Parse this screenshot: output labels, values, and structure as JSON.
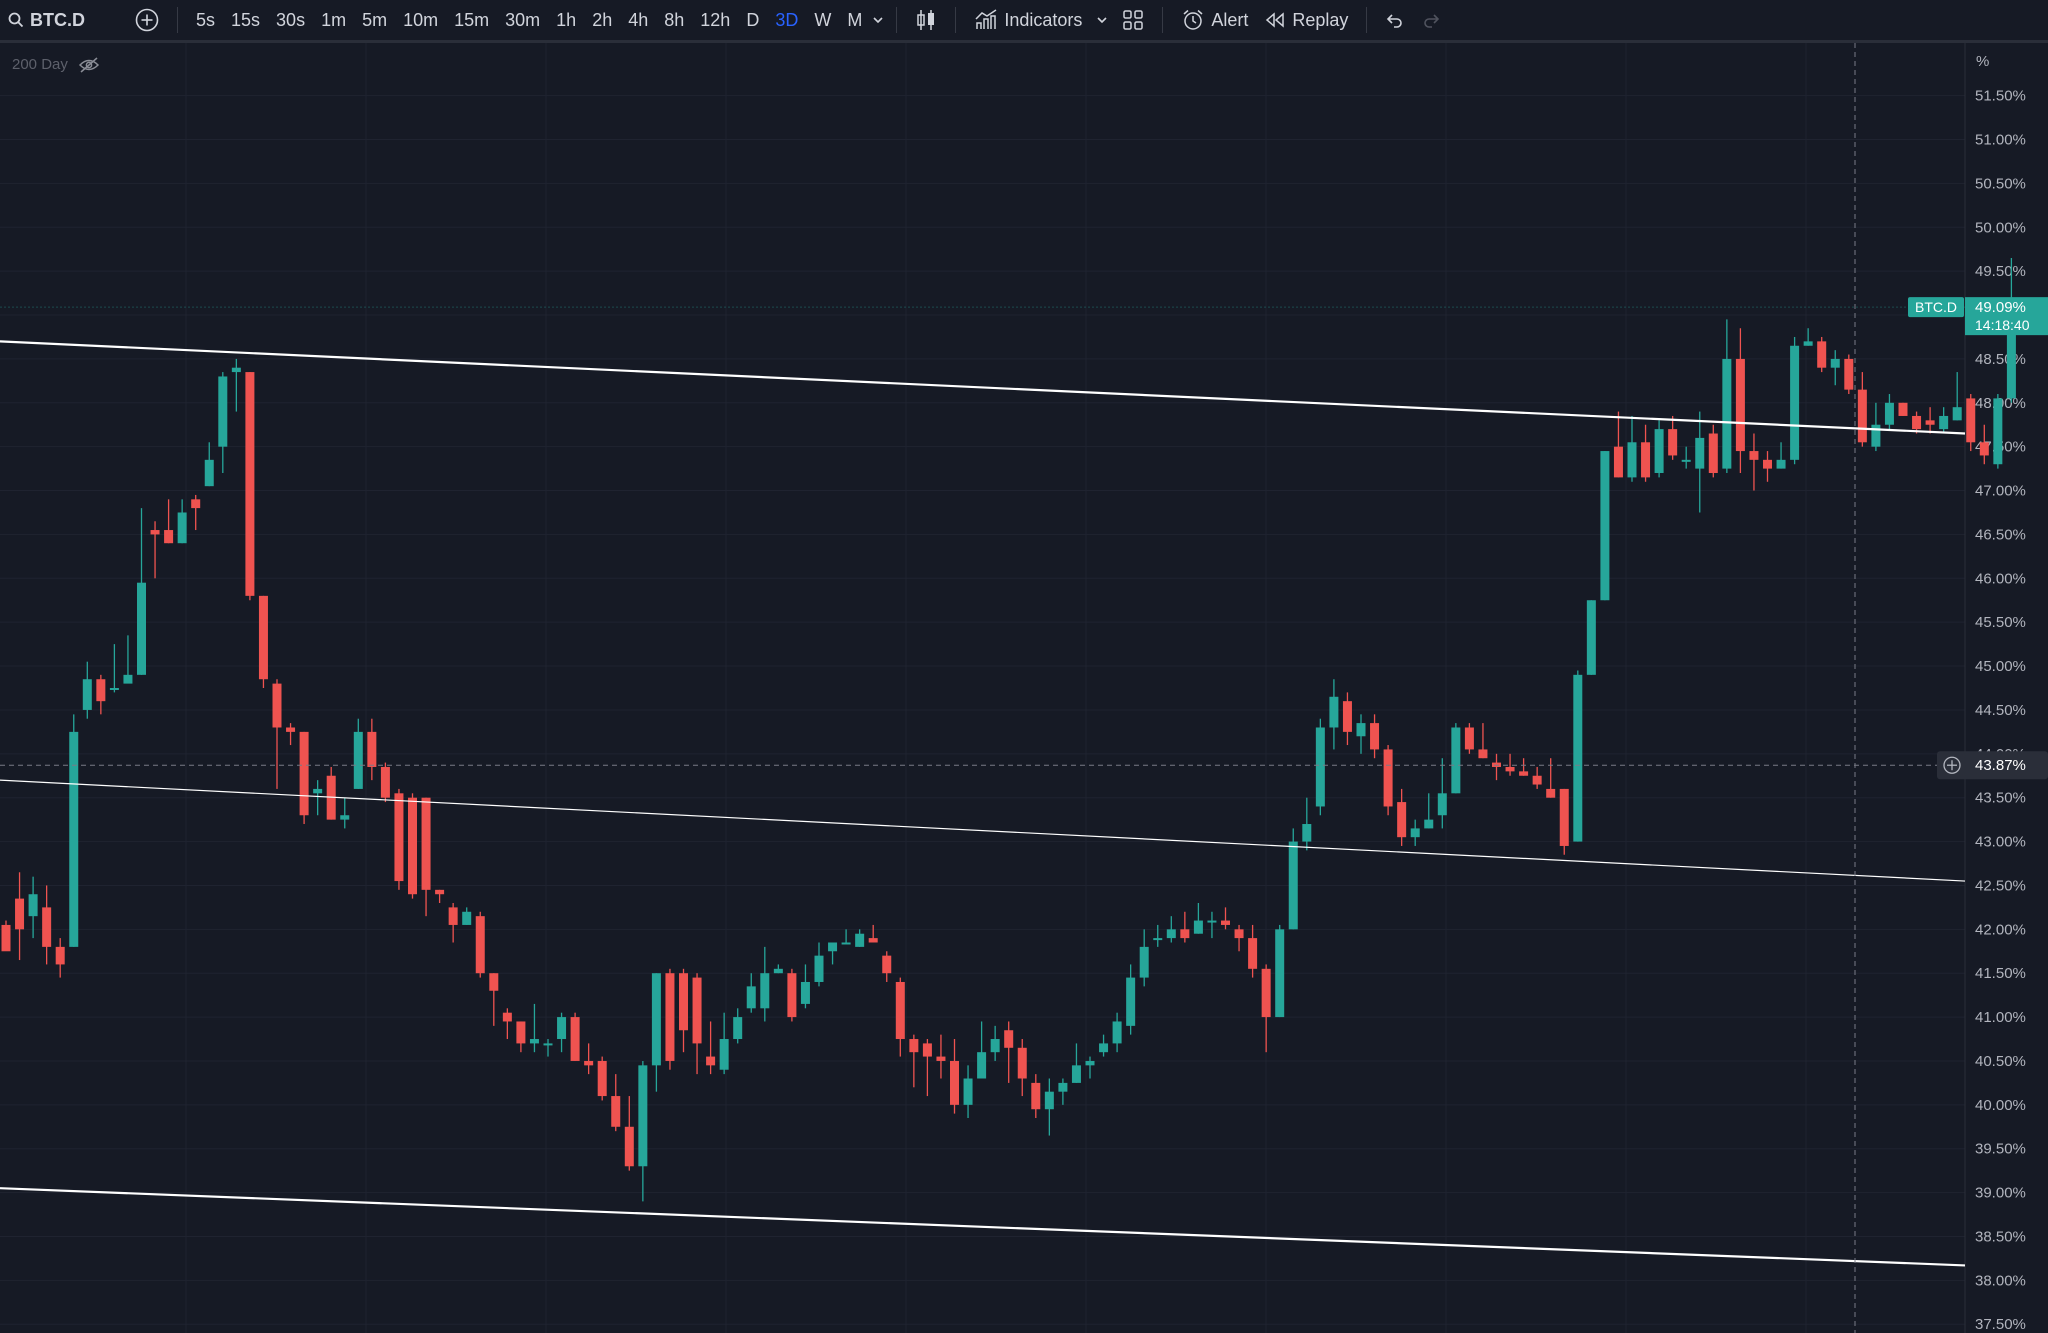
{
  "toolbar": {
    "symbol": "BTC.D",
    "intervals": [
      "5s",
      "15s",
      "30s",
      "1m",
      "5m",
      "10m",
      "15m",
      "30m",
      "1h",
      "2h",
      "4h",
      "8h",
      "12h",
      "D",
      "3D",
      "W",
      "M"
    ],
    "active_interval": "3D",
    "indicators_label": "Indicators",
    "alert_label": "Alert",
    "replay_label": "Replay"
  },
  "legend": {
    "indicator_label": "200 Day"
  },
  "price_axis": {
    "unit": "%"
  },
  "colors": {
    "up": "#26a69a",
    "down": "#ef5350",
    "background": "#161a25",
    "grid": "#1f2330",
    "accent": "#2962ff",
    "tag": "#26a69a"
  },
  "chart_data": {
    "type": "candlestick",
    "symbol": "BTC.D",
    "ylim": [
      37.4,
      52.1
    ],
    "y_ticks": [
      "51.50%",
      "51.00%",
      "50.50%",
      "50.00%",
      "49.50%",
      "49.00%",
      "48.50%",
      "48.00%",
      "47.50%",
      "47.00%",
      "46.50%",
      "46.00%",
      "45.50%",
      "45.00%",
      "44.50%",
      "44.00%",
      "43.50%",
      "43.00%",
      "42.50%",
      "42.00%",
      "41.50%",
      "41.00%",
      "40.50%",
      "40.00%",
      "39.50%",
      "39.00%",
      "38.50%",
      "38.00%",
      "37.50%"
    ],
    "current_price": {
      "symbol_tag": "BTC.D",
      "label": "49.09%",
      "countdown": "14:18:40",
      "value": 49.09
    },
    "crosshair": {
      "label": "43.87%",
      "value": 43.87
    },
    "candles": [
      [
        42.05,
        41.75,
        42.1,
        41.8
      ],
      [
        42.35,
        42.0,
        42.65,
        41.65
      ],
      [
        42.15,
        42.4,
        42.6,
        41.9
      ],
      [
        42.25,
        41.8,
        42.5,
        41.6
      ],
      [
        41.8,
        41.6,
        41.9,
        41.45
      ],
      [
        41.8,
        44.25,
        44.45,
        41.8
      ],
      [
        44.5,
        44.85,
        45.05,
        44.4
      ],
      [
        44.85,
        44.6,
        44.9,
        44.45
      ],
      [
        44.75,
        44.75,
        45.25,
        44.7
      ],
      [
        44.8,
        44.9,
        45.35,
        44.85
      ],
      [
        44.9,
        45.95,
        46.8,
        44.9
      ],
      [
        46.55,
        46.5,
        46.65,
        46.0
      ],
      [
        46.55,
        46.4,
        46.9,
        46.4
      ],
      [
        46.4,
        46.75,
        46.9,
        46.4
      ],
      [
        46.9,
        46.8,
        46.95,
        46.55
      ],
      [
        47.05,
        47.35,
        47.55,
        47.05
      ],
      [
        47.5,
        48.3,
        48.35,
        47.2
      ],
      [
        48.35,
        48.4,
        48.5,
        47.9
      ],
      [
        48.35,
        45.8,
        48.35,
        45.75
      ],
      [
        45.8,
        44.85,
        45.8,
        44.75
      ],
      [
        44.8,
        44.3,
        44.85,
        43.6
      ],
      [
        44.3,
        44.25,
        44.35,
        44.1
      ],
      [
        44.25,
        43.3,
        44.25,
        43.2
      ],
      [
        43.55,
        43.6,
        43.7,
        43.3
      ],
      [
        43.75,
        43.25,
        43.85,
        43.25
      ],
      [
        43.25,
        43.3,
        43.5,
        43.15
      ],
      [
        43.6,
        44.25,
        44.4,
        43.6
      ],
      [
        44.25,
        43.85,
        44.4,
        43.7
      ],
      [
        43.85,
        43.5,
        43.9,
        43.45
      ],
      [
        43.55,
        42.55,
        43.6,
        42.45
      ],
      [
        43.5,
        42.4,
        43.55,
        42.35
      ],
      [
        43.5,
        42.45,
        43.5,
        42.15
      ],
      [
        42.45,
        42.4,
        42.45,
        42.3
      ],
      [
        42.25,
        42.05,
        42.3,
        41.85
      ],
      [
        42.05,
        42.2,
        42.25,
        42.05
      ],
      [
        42.15,
        41.5,
        42.2,
        41.45
      ],
      [
        41.5,
        41.3,
        41.5,
        40.9
      ],
      [
        41.05,
        40.95,
        41.1,
        40.75
      ],
      [
        40.95,
        40.7,
        40.95,
        40.6
      ],
      [
        40.7,
        40.75,
        41.15,
        40.6
      ],
      [
        40.7,
        40.7,
        40.75,
        40.55
      ],
      [
        40.75,
        41.0,
        41.05,
        40.6
      ],
      [
        41.0,
        40.5,
        41.05,
        40.5
      ],
      [
        40.5,
        40.45,
        40.7,
        40.35
      ],
      [
        40.5,
        40.1,
        40.55,
        40.05
      ],
      [
        40.1,
        39.75,
        40.35,
        39.7
      ],
      [
        39.75,
        39.3,
        40.1,
        39.25
      ],
      [
        39.3,
        40.45,
        40.5,
        38.9
      ],
      [
        40.45,
        41.5,
        41.5,
        40.15
      ],
      [
        41.5,
        40.5,
        41.55,
        40.4
      ],
      [
        41.5,
        40.85,
        41.55,
        40.6
      ],
      [
        41.45,
        40.7,
        41.5,
        40.35
      ],
      [
        40.55,
        40.45,
        40.95,
        40.35
      ],
      [
        40.4,
        40.75,
        41.05,
        40.35
      ],
      [
        40.75,
        41.0,
        41.1,
        40.7
      ],
      [
        41.1,
        41.35,
        41.5,
        41.05
      ],
      [
        41.1,
        41.5,
        41.8,
        40.95
      ],
      [
        41.5,
        41.55,
        41.6,
        41.5
      ],
      [
        41.5,
        41.0,
        41.55,
        40.95
      ],
      [
        41.15,
        41.4,
        41.6,
        41.1
      ],
      [
        41.4,
        41.7,
        41.85,
        41.35
      ],
      [
        41.75,
        41.85,
        41.85,
        41.6
      ],
      [
        41.85,
        41.85,
        42.0,
        41.85
      ],
      [
        41.8,
        41.95,
        42.0,
        41.8
      ],
      [
        41.9,
        41.85,
        42.05,
        41.85
      ],
      [
        41.7,
        41.5,
        41.75,
        41.4
      ],
      [
        41.4,
        40.75,
        41.45,
        40.55
      ],
      [
        40.75,
        40.6,
        40.8,
        40.2
      ],
      [
        40.7,
        40.55,
        40.75,
        40.1
      ],
      [
        40.55,
        40.5,
        40.8,
        40.3
      ],
      [
        40.5,
        40.0,
        40.75,
        39.9
      ],
      [
        40.0,
        40.3,
        40.45,
        39.85
      ],
      [
        40.3,
        40.6,
        40.95,
        40.3
      ],
      [
        40.6,
        40.75,
        40.9,
        40.5
      ],
      [
        40.85,
        40.65,
        40.95,
        40.25
      ],
      [
        40.65,
        40.3,
        40.75,
        40.1
      ],
      [
        40.25,
        39.95,
        40.35,
        39.85
      ],
      [
        39.95,
        40.15,
        40.3,
        39.65
      ],
      [
        40.15,
        40.25,
        40.3,
        40.0
      ],
      [
        40.25,
        40.45,
        40.7,
        40.25
      ],
      [
        40.45,
        40.5,
        40.55,
        40.3
      ],
      [
        40.6,
        40.7,
        40.8,
        40.55
      ],
      [
        40.7,
        40.95,
        41.05,
        40.6
      ],
      [
        40.9,
        41.45,
        41.6,
        40.8
      ],
      [
        41.45,
        41.8,
        42.0,
        41.35
      ],
      [
        41.9,
        41.9,
        42.05,
        41.8
      ],
      [
        41.9,
        42.0,
        42.15,
        41.85
      ],
      [
        42.0,
        41.9,
        42.2,
        41.85
      ],
      [
        41.95,
        42.1,
        42.3,
        41.95
      ],
      [
        42.1,
        42.1,
        42.2,
        41.9
      ],
      [
        42.1,
        42.05,
        42.25,
        42.0
      ],
      [
        42.0,
        41.9,
        42.05,
        41.75
      ],
      [
        41.9,
        41.55,
        42.05,
        41.45
      ],
      [
        41.55,
        41.0,
        41.6,
        40.6
      ],
      [
        41.0,
        42.0,
        42.05,
        41.0
      ],
      [
        42.0,
        43.0,
        43.15,
        42.0
      ],
      [
        43.0,
        43.2,
        43.5,
        42.9
      ],
      [
        43.4,
        44.3,
        44.4,
        43.3
      ],
      [
        44.3,
        44.65,
        44.85,
        44.05
      ],
      [
        44.6,
        44.25,
        44.7,
        44.1
      ],
      [
        44.2,
        44.35,
        44.45,
        44.0
      ],
      [
        44.35,
        44.05,
        44.45,
        43.95
      ],
      [
        44.05,
        43.4,
        44.1,
        43.3
      ],
      [
        43.45,
        43.05,
        43.6,
        42.95
      ],
      [
        43.05,
        43.15,
        43.25,
        42.95
      ],
      [
        43.15,
        43.25,
        43.55,
        43.15
      ],
      [
        43.3,
        43.55,
        43.95,
        43.15
      ],
      [
        43.55,
        44.3,
        44.35,
        43.55
      ],
      [
        44.3,
        44.05,
        44.35,
        44.0
      ],
      [
        44.05,
        43.95,
        44.35,
        43.95
      ],
      [
        43.9,
        43.85,
        44.0,
        43.7
      ],
      [
        43.85,
        43.8,
        44.0,
        43.75
      ],
      [
        43.8,
        43.75,
        43.95,
        43.75
      ],
      [
        43.75,
        43.65,
        43.85,
        43.6
      ],
      [
        43.6,
        43.5,
        43.95,
        43.5
      ],
      [
        43.6,
        42.95,
        43.6,
        42.85
      ],
      [
        43.0,
        44.9,
        44.95,
        43.0
      ],
      [
        44.9,
        45.75,
        45.75,
        44.9
      ],
      [
        45.75,
        47.45,
        47.45,
        45.75
      ],
      [
        47.5,
        47.15,
        47.9,
        47.15
      ],
      [
        47.15,
        47.55,
        47.85,
        47.1
      ],
      [
        47.55,
        47.15,
        47.75,
        47.1
      ],
      [
        47.2,
        47.7,
        47.8,
        47.15
      ],
      [
        47.7,
        47.4,
        47.85,
        47.35
      ],
      [
        47.35,
        47.35,
        47.5,
        47.25
      ],
      [
        47.25,
        47.6,
        47.9,
        46.75
      ],
      [
        47.65,
        47.2,
        47.75,
        47.15
      ],
      [
        47.25,
        48.5,
        48.95,
        47.2
      ],
      [
        48.5,
        47.45,
        48.85,
        47.2
      ],
      [
        47.45,
        47.35,
        47.65,
        47.0
      ],
      [
        47.35,
        47.25,
        47.45,
        47.1
      ],
      [
        47.25,
        47.35,
        47.55,
        47.25
      ],
      [
        47.35,
        48.65,
        48.75,
        47.3
      ],
      [
        48.65,
        48.7,
        48.85,
        48.65
      ],
      [
        48.7,
        48.4,
        48.75,
        48.35
      ],
      [
        48.4,
        48.5,
        48.6,
        48.2
      ],
      [
        48.5,
        48.15,
        48.55,
        48.1
      ],
      [
        48.15,
        47.55,
        48.35,
        47.5
      ],
      [
        47.5,
        47.75,
        48.0,
        47.45
      ],
      [
        47.75,
        48.0,
        48.1,
        47.7
      ],
      [
        48.0,
        47.85,
        48.0,
        47.85
      ],
      [
        47.85,
        47.7,
        47.9,
        47.65
      ],
      [
        47.8,
        47.75,
        47.95,
        47.65
      ],
      [
        47.7,
        47.85,
        47.95,
        47.65
      ],
      [
        47.8,
        47.95,
        48.35,
        47.8
      ],
      [
        48.05,
        47.55,
        48.1,
        47.45
      ],
      [
        47.55,
        47.4,
        47.75,
        47.3
      ],
      [
        47.3,
        48.05,
        48.1,
        47.25
      ],
      [
        48.05,
        49.09,
        49.65,
        48.0
      ]
    ]
  }
}
